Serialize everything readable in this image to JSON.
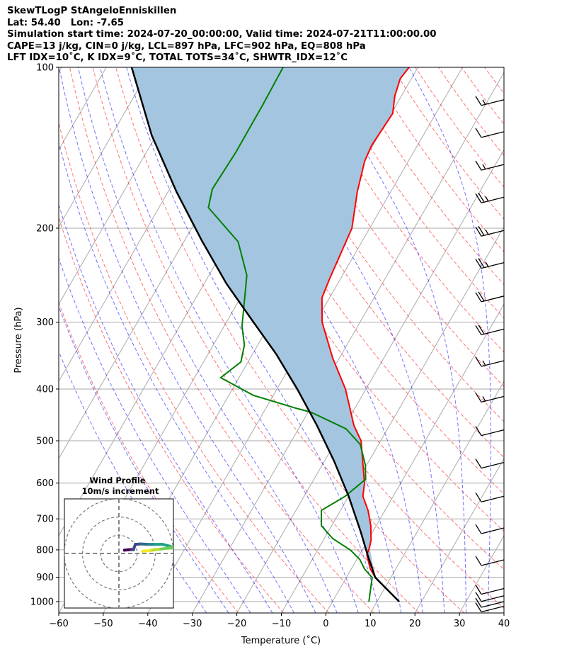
{
  "header": {
    "title": "SkewTLogP StAngeloEnniskillen",
    "location": "Lat: 54.40   Lon: -7.65",
    "times": "Simulation start time: 2024-07-20_00:00:00, Valid time: 2024-07-21T11:00:00.00",
    "indices1": "CAPE=13 j/kg, CIN=0 j/kg, LCL=897 hPa, LFC=902 hPa, EQ=808 hPa",
    "indices2": "LFT IDX=10˚C, K IDX=9˚C, TOTAL TOTS=34˚C, SHWTR_IDX=12˚C"
  },
  "chart_data": {
    "type": "line",
    "xlabel": "Temperature (˚C)",
    "ylabel": "Pressure (hPa)",
    "xlim": [
      -60,
      40
    ],
    "ylim": [
      1050,
      100
    ],
    "x_ticks": [
      "−60",
      "−50",
      "−40",
      "−30",
      "−20",
      "−10",
      "0",
      "10",
      "20",
      "30",
      "40"
    ],
    "x_tick_values": [
      -60,
      -50,
      -40,
      -30,
      -20,
      -10,
      0,
      10,
      20,
      30,
      40
    ],
    "y_ticks": [
      "100",
      "200",
      "300",
      "400",
      "500",
      "600",
      "700",
      "800",
      "900",
      "1000"
    ],
    "y_tick_values": [
      100,
      200,
      300,
      400,
      500,
      600,
      700,
      800,
      900,
      1000
    ],
    "series": [
      {
        "name": "temperature",
        "color": "#ff0000",
        "p": [
          1000,
          901,
          869,
          818,
          791,
          767,
          721,
          675,
          635,
          601,
          500,
          468,
          400,
          350,
          300,
          270,
          250,
          200,
          171,
          150,
          140,
          122,
          113,
          105,
          100
        ],
        "T": [
          15.0,
          6.5,
          4.3,
          1.7,
          1.3,
          0.7,
          -1.2,
          -3.8,
          -6.8,
          -8.1,
          -14.4,
          -18,
          -24.6,
          -31.5,
          -38.5,
          -41.7,
          -42.4,
          -44,
          -47.5,
          -49.8,
          -50.3,
          -49.7,
          -51.5,
          -52.5,
          -52
        ]
      },
      {
        "name": "dewpoint",
        "color": "#008000",
        "p": [
          1000,
          901,
          869,
          834,
          801,
          762,
          721,
          675,
          635,
          590,
          555,
          508,
          475,
          442,
          435,
          411,
          381,
          356,
          331,
          305,
          260,
          245,
          212,
          183,
          169,
          144,
          117,
          100
        ],
        "T": [
          8.2,
          5.8,
          3.0,
          0.7,
          -2.6,
          -8.1,
          -12.3,
          -14.3,
          -10.8,
          -8.4,
          -10.3,
          -14.1,
          -19.3,
          -29.4,
          -33,
          -44.5,
          -54.1,
          -51.6,
          -53,
          -56,
          -60,
          -61.5,
          -67.8,
          -78.9,
          -80.4,
          -79.9,
          -80,
          -80.3
        ]
      },
      {
        "name": "parcel",
        "color": "#000000",
        "p": [
          1000,
          901,
          822,
          740,
          635,
          545,
          468,
          401,
          344,
          296,
          254,
          211,
          171,
          134,
          100
        ],
        "T": [
          15.0,
          6.5,
          2.1,
          -2.7,
          -10,
          -17.9,
          -26.3,
          -35.3,
          -44.7,
          -54.8,
          -65,
          -76.1,
          -88.1,
          -101,
          -114.3
        ]
      }
    ],
    "shading_color": "#a3c5df",
    "wind_barbs": {
      "p": [
        115,
        132,
        152,
        175,
        202,
        232,
        268,
        309,
        354,
        413,
        477,
        549,
        635,
        728,
        835,
        945,
        975,
        1000,
        1020
      ],
      "speed_kt": [
        15,
        10,
        15,
        25,
        25,
        25,
        20,
        20,
        15,
        15,
        10,
        10,
        10,
        10,
        10,
        10,
        10,
        10,
        10
      ]
    },
    "hodograph": {
      "title": "Wind Profile",
      "subtitle": "10m/s increment",
      "u": [
        3,
        5,
        7,
        8,
        9,
        12,
        16,
        19.5,
        24,
        28,
        30,
        26,
        22,
        17,
        13
      ],
      "v": [
        1.8,
        2,
        2.2,
        2,
        5,
        5.2,
        5,
        5,
        5,
        4,
        3,
        2.8,
        2.3,
        1.6,
        1.2
      ]
    }
  }
}
